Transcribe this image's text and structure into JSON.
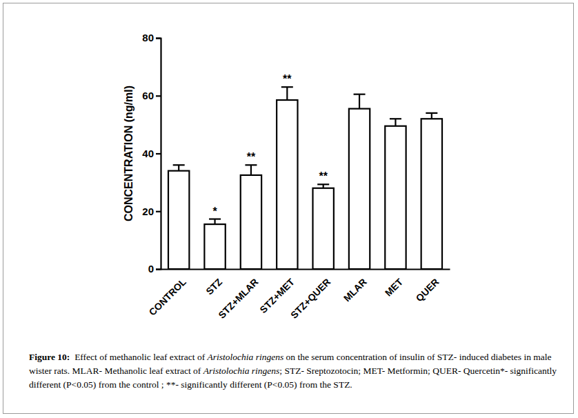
{
  "chart_data": {
    "type": "bar",
    "y_label": "CONCENTRATION (ng/ml)",
    "categories": [
      "CONTROL",
      "STZ",
      "STZ+MLAR",
      "STZ+MET",
      "STZ+QUER",
      "MLAR",
      "MET",
      "QUER"
    ],
    "values": [
      34,
      15.5,
      32.5,
      58.5,
      28,
      55.5,
      49.5,
      52
    ],
    "errors": [
      2,
      1.8,
      3.5,
      4.5,
      1.3,
      5,
      2.5,
      2
    ],
    "significance": [
      null,
      "*",
      "**",
      "**",
      "**",
      null,
      null,
      null
    ],
    "color": "#ffffff",
    "ylim": [
      0,
      80
    ],
    "yticks": [
      0,
      20,
      40,
      60,
      80
    ],
    "grid": false,
    "caption_label": "Figure 10:",
    "caption": [
      "  Effect of methanolic leaf extract of ",
      "Aristolochia ringens",
      " on the serum concentration of insulin of STZ- induced diabetes in male wister rats. MLAR- Methanolic leaf extract of ",
      "Aristolochia ringens",
      "; STZ- Sreptozotocin; MET- Metformin; QUER- Quercetin*- significantly different (P<0.05) from the control ; **- significantly different (P<0.05) from the STZ."
    ]
  }
}
